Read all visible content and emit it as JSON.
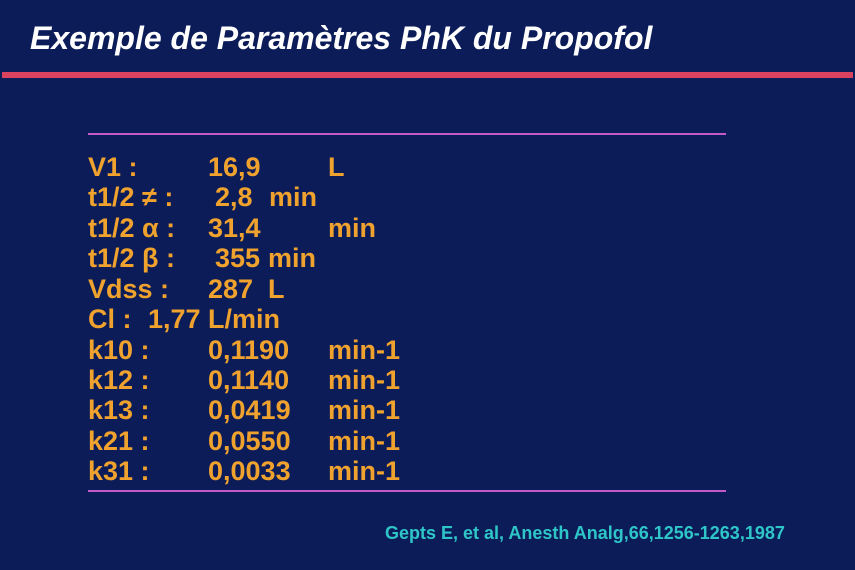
{
  "slide": {
    "title": "Exemple de Paramètres PhK du Propofol",
    "colors": {
      "background": "#0b1c58",
      "title_bar": "#d9435f",
      "rules": "#c45ac8",
      "text": "#f0a22e",
      "citation": "#2ec6c8"
    },
    "rows": [
      {
        "label": "V1 :",
        "value": "16,9",
        "unit": "L"
      },
      {
        "label": "t1/2 ≠ :",
        "value": "2,8",
        "unit": "min"
      },
      {
        "label": "t1/2 α :",
        "value": "31,4",
        "unit": "min"
      },
      {
        "label": "t1/2 β :",
        "value": "355",
        "unit": "min"
      },
      {
        "label": "Vdss :",
        "value": "287",
        "unit": "L"
      },
      {
        "label": "Cl :",
        "value": "1,77",
        "unit": "L/min"
      },
      {
        "label": "k10 :",
        "value": "0,1190",
        "unit": "min-1"
      },
      {
        "label": "k12 :",
        "value": "0,1140",
        "unit": "min-1"
      },
      {
        "label": "k13 :",
        "value": "0,0419",
        "unit": "min-1"
      },
      {
        "label": "k21 :",
        "value": "0,0550",
        "unit": "min-1"
      },
      {
        "label": "k31 :",
        "value": "0,0033",
        "unit": "min-1"
      }
    ],
    "citation": "Gepts E, et al, Anesth Analg,66,1256-1263,1987"
  }
}
